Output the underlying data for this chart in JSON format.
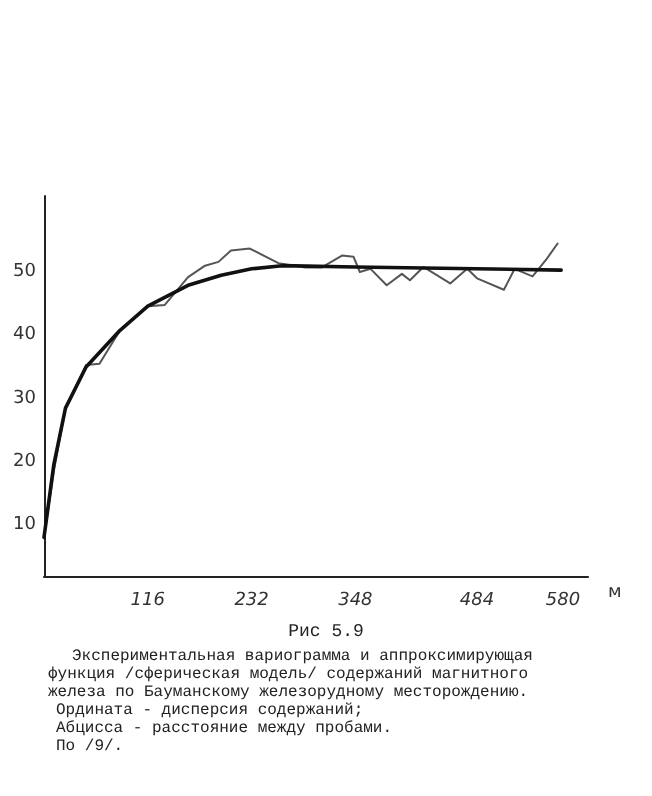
{
  "chart_data": {
    "type": "line",
    "title": "Рис 5.9",
    "xlabel": "м",
    "annotations": [
      "Экспериментальная вариограмма и аппроксимирующая функция /сферическая модель/ содержаний магнитного железа по Бауманскому железорудному месторождению.",
      "Ордината - дисперсия содержаний;",
      "Абцисса - расстояние между пробами.",
      "По /9/."
    ],
    "series": [
      {
        "color": "#555555",
        "x": [
          0,
          11,
          24,
          47,
          62,
          85,
          116,
          135,
          161,
          180,
          195,
          209,
          230,
          262,
          292,
          310,
          333,
          346,
          353,
          365,
          383,
          400,
          409,
          424,
          454,
          473,
          484,
          514,
          526,
          546,
          561,
          574
        ],
        "values": [
          8.1,
          18.6,
          28.5,
          35.3,
          35.5,
          40.8,
          44.6,
          44.8,
          49.2,
          51,
          51.6,
          53.4,
          53.7,
          51.4,
          50.7,
          50.7,
          52.6,
          52.4,
          50,
          50.5,
          47.9,
          49.7,
          48.7,
          50.8,
          48.2,
          50.5,
          49,
          47.2,
          50.5,
          49.3,
          51.9,
          54.5
        ]
      },
      {
        "color": "#111111",
        "x": [
          0,
          11,
          24,
          47,
          85,
          116,
          161,
          198,
          232,
          266,
          348,
          578
        ],
        "values": [
          8.1,
          19.6,
          28.5,
          35,
          40.8,
          44.6,
          47.9,
          49.5,
          50.5,
          51,
          50.8,
          50.3
        ]
      }
    ],
    "xlim": [
      0,
      608
    ],
    "xticks": [
      116,
      232,
      348,
      484,
      580
    ],
    "ylim": [
      2,
      62
    ],
    "yticks": [
      10,
      20,
      30,
      40,
      50
    ],
    "grid": false,
    "marker": "none",
    "line_style": "solid"
  }
}
